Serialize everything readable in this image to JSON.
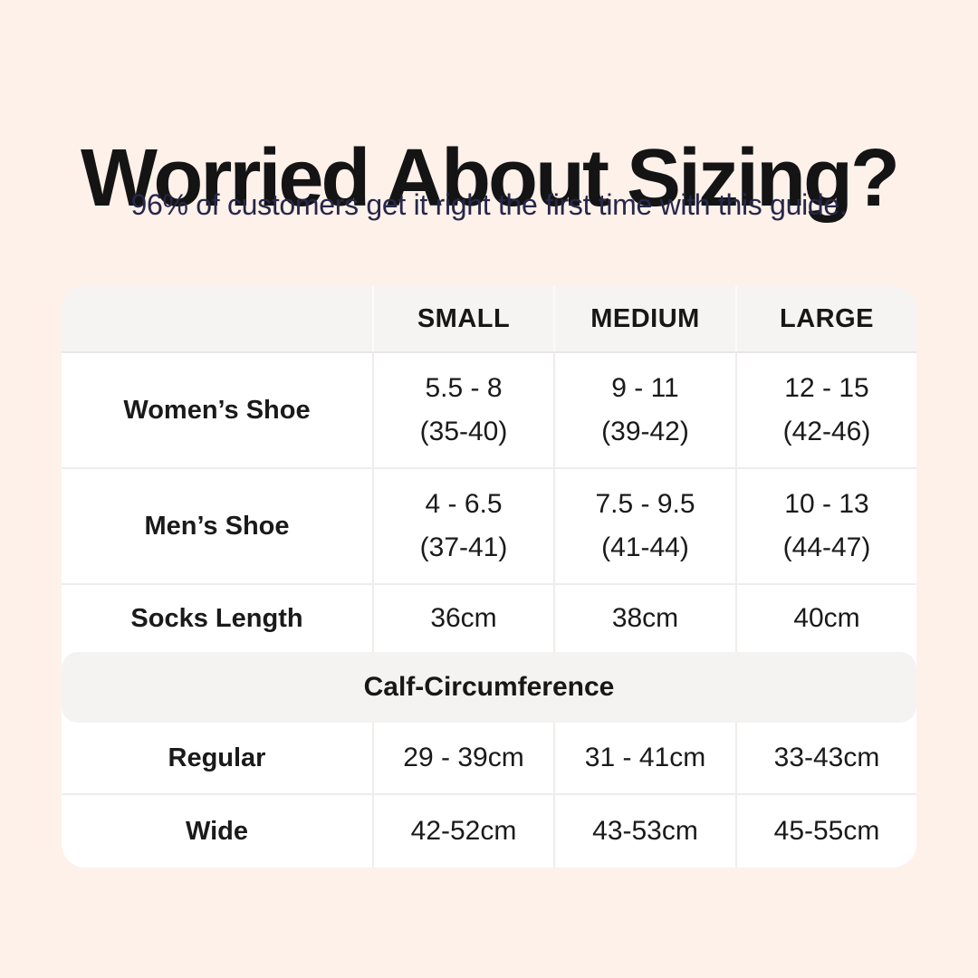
{
  "page": {
    "title": "Worried About Sizing?",
    "subtitle": "96% of customers get it right the first time with this guide."
  },
  "colors": {
    "background": "#fdf1ea",
    "title_text": "#141414",
    "subtitle_text": "#27274a",
    "table_background": "#ffffff",
    "header_background": "#f5f4f3",
    "section_band_background": "#f4f3f2",
    "divider": "#eeedec",
    "table_text": "#1a1a1a"
  },
  "table": {
    "column_headers": {
      "small": "SMALL",
      "medium": "MEDIUM",
      "large": "LARGE"
    },
    "rows": [
      {
        "label": "Women’s Shoe",
        "small": {
          "l1": "5.5 - 8",
          "l2": "(35-40)"
        },
        "medium": {
          "l1": "9 - 11",
          "l2": "(39-42)"
        },
        "large": {
          "l1": "12 - 15",
          "l2": "(42-46)"
        }
      },
      {
        "label": "Men’s Shoe",
        "small": {
          "l1": "4 - 6.5",
          "l2": "(37-41)"
        },
        "medium": {
          "l1": "7.5 - 9.5",
          "l2": "(41-44)"
        },
        "large": {
          "l1": "10 - 13",
          "l2": "(44-47)"
        }
      },
      {
        "label": "Socks Length",
        "small": {
          "l1": "36cm"
        },
        "medium": {
          "l1": "38cm"
        },
        "large": {
          "l1": "40cm"
        }
      }
    ],
    "section_header": "Calf-Circumference",
    "section_rows": [
      {
        "label": "Regular",
        "small": {
          "l1": "29 - 39cm"
        },
        "medium": {
          "l1": "31 - 41cm"
        },
        "large": {
          "l1": "33-43cm"
        }
      },
      {
        "label": "Wide",
        "small": {
          "l1": "42-52cm"
        },
        "medium": {
          "l1": "43-53cm"
        },
        "large": {
          "l1": "45-55cm"
        }
      }
    ]
  },
  "chart_data": {
    "type": "table",
    "title": "Worried About Sizing?",
    "subtitle": "96% of customers get it right the first time with this guide.",
    "columns": [
      "",
      "SMALL",
      "MEDIUM",
      "LARGE"
    ],
    "rows": [
      [
        "Women’s Shoe",
        "5.5 - 8 (35-40)",
        "9 - 11 (39-42)",
        "12 - 15 (42-46)"
      ],
      [
        "Men’s Shoe",
        "4 - 6.5 (37-41)",
        "7.5 - 9.5 (41-44)",
        "10 - 13 (44-47)"
      ],
      [
        "Socks Length",
        "36cm",
        "38cm",
        "40cm"
      ],
      [
        "Calf-Circumference",
        "",
        "",
        ""
      ],
      [
        "Regular",
        "29 - 39cm",
        "31 - 41cm",
        "33-43cm"
      ],
      [
        "Wide",
        "42-52cm",
        "43-53cm",
        "45-55cm"
      ]
    ],
    "layout_hints": {
      "section_header_row_index": 3,
      "header_style": "gray band",
      "corner_cell_empty": true
    }
  }
}
